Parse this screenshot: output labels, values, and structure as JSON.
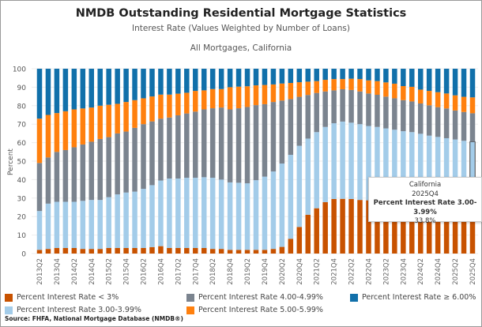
{
  "header": {
    "title": "NMDB Outstanding Residential Mortgage Statistics",
    "subtitle": "Interest Rate (Values Weighted by Number of Loans)",
    "filter": "All Mortgages,  California"
  },
  "source": "Source:  FHFA, National Mortgage Database (NMDB®)",
  "tooltip": {
    "region": "California",
    "period": "2025Q4",
    "series": "Percent Interest Rate 3.00-3.99%",
    "value": "33.8%"
  },
  "chart_data": {
    "type": "bar",
    "stacked": true,
    "ylabel": "Percent",
    "xlabel": "",
    "ylim": [
      0,
      100
    ],
    "yticks": [
      0,
      10,
      20,
      30,
      40,
      50,
      60,
      70,
      80,
      90,
      100
    ],
    "grid": true,
    "legend_position": "bottom",
    "categories": [
      "2013Q2",
      "2013Q3",
      "2013Q4",
      "2014Q1",
      "2014Q2",
      "2014Q3",
      "2014Q4",
      "2015Q1",
      "2015Q2",
      "2015Q3",
      "2015Q4",
      "2016Q1",
      "2016Q2",
      "2016Q3",
      "2016Q4",
      "2017Q1",
      "2017Q2",
      "2017Q3",
      "2017Q4",
      "2018Q1",
      "2018Q2",
      "2018Q3",
      "2018Q4",
      "2019Q1",
      "2019Q2",
      "2019Q3",
      "2019Q4",
      "2020Q1",
      "2020Q2",
      "2020Q3",
      "2020Q4",
      "2021Q1",
      "2021Q2",
      "2021Q3",
      "2021Q4",
      "2022Q1",
      "2022Q2",
      "2022Q3",
      "2022Q4",
      "2023Q1",
      "2023Q2",
      "2023Q3",
      "2023Q4",
      "2024Q1",
      "2024Q2",
      "2024Q3",
      "2024Q4",
      "2025Q1",
      "2025Q2",
      "2025Q3",
      "2025Q4"
    ],
    "series": [
      {
        "name": "Percent Interest Rate < 3%",
        "color": "#c85200",
        "values": [
          2,
          2.5,
          3,
          3,
          3,
          2.5,
          2.5,
          2.5,
          3,
          3,
          3,
          3,
          3,
          3.5,
          4,
          3,
          3,
          3,
          3,
          3,
          2.5,
          2.5,
          2,
          2,
          2,
          2,
          2,
          2.5,
          3.6,
          8,
          14.4,
          21,
          24.5,
          27.8,
          29.5,
          29.6,
          29.5,
          29,
          28.8,
          28.6,
          28.4,
          28.2,
          28,
          27.8,
          27.6,
          27.4,
          27.2,
          27.1,
          27,
          26.8,
          26.7
        ]
      },
      {
        "name": "Percent Interest Rate 3.00-3.99%",
        "color": "#a3cce9",
        "values": [
          21,
          24.5,
          25,
          25,
          25,
          26,
          26.5,
          26.5,
          27.5,
          29,
          30,
          30.5,
          32,
          33.5,
          35.5,
          37.6,
          37.6,
          38,
          38,
          38.3,
          38.5,
          37.5,
          36.5,
          36.3,
          36,
          37.7,
          39.6,
          41.9,
          45.1,
          45.4,
          43.9,
          41.2,
          41.2,
          40.7,
          41,
          41.8,
          41.3,
          41,
          40.2,
          39.9,
          39.3,
          38.8,
          38.2,
          37.9,
          37.2,
          36.4,
          35.9,
          35.3,
          34.7,
          34.2,
          33.8
        ]
      },
      {
        "name": "Percent Interest Rate 4.00-4.99%",
        "color": "#7b848f",
        "values": [
          26,
          25,
          27,
          28,
          29.5,
          30.5,
          31.5,
          33,
          32.5,
          33,
          33,
          34.5,
          35,
          34.5,
          33.5,
          33,
          34.2,
          34.8,
          35.8,
          36.7,
          37.6,
          39,
          39.5,
          40.3,
          41.3,
          40.6,
          39.2,
          37.6,
          34.1,
          30.2,
          26.5,
          23.6,
          21.2,
          19.2,
          17.8,
          17.5,
          17.7,
          17.7,
          17.6,
          17.4,
          17.2,
          17,
          16.8,
          16.6,
          16.4,
          16.4,
          16.1,
          16.1,
          15.7,
          15.6,
          15.4
        ]
      },
      {
        "name": "Percent Interest Rate 5.00-5.99%",
        "color": "#ff800e",
        "values": [
          24,
          23,
          21,
          21,
          20.5,
          19.5,
          18.5,
          18,
          17.5,
          16,
          16,
          15,
          14,
          13.5,
          13,
          12.4,
          11.7,
          11.2,
          11.2,
          10.3,
          10.4,
          10,
          12,
          11.7,
          11.2,
          10.7,
          10.4,
          9.5,
          9.2,
          8.7,
          7.9,
          7.2,
          6.4,
          6.3,
          6.1,
          5.5,
          6.1,
          6.7,
          7.1,
          7.4,
          7.7,
          7.9,
          7.6,
          7.9,
          7.5,
          7.8,
          8.1,
          8.1,
          8.2,
          8.2,
          8.6
        ]
      },
      {
        "name": "Percent Interest Rate ≥ 6.00%",
        "color": "#1170aa",
        "values": [
          27,
          25,
          24,
          23,
          22,
          21.5,
          21,
          20,
          19.5,
          19,
          18,
          17,
          16,
          15,
          14,
          14,
          13.5,
          13,
          12,
          11.7,
          11,
          11,
          10,
          9.7,
          9.5,
          9,
          8.8,
          8.5,
          8,
          7.7,
          7.3,
          7,
          6.7,
          6,
          5.6,
          5.6,
          5.4,
          5.6,
          6.3,
          6.7,
          7.4,
          8.1,
          9.4,
          9.8,
          11.3,
          12,
          12.7,
          13.4,
          14.4,
          15.2,
          15.5
        ]
      }
    ],
    "legend_order": [
      0,
      2,
      4,
      1,
      3
    ],
    "highlighted": {
      "category": "2025Q4",
      "series": "Percent Interest Rate 3.00-3.99%"
    }
  }
}
